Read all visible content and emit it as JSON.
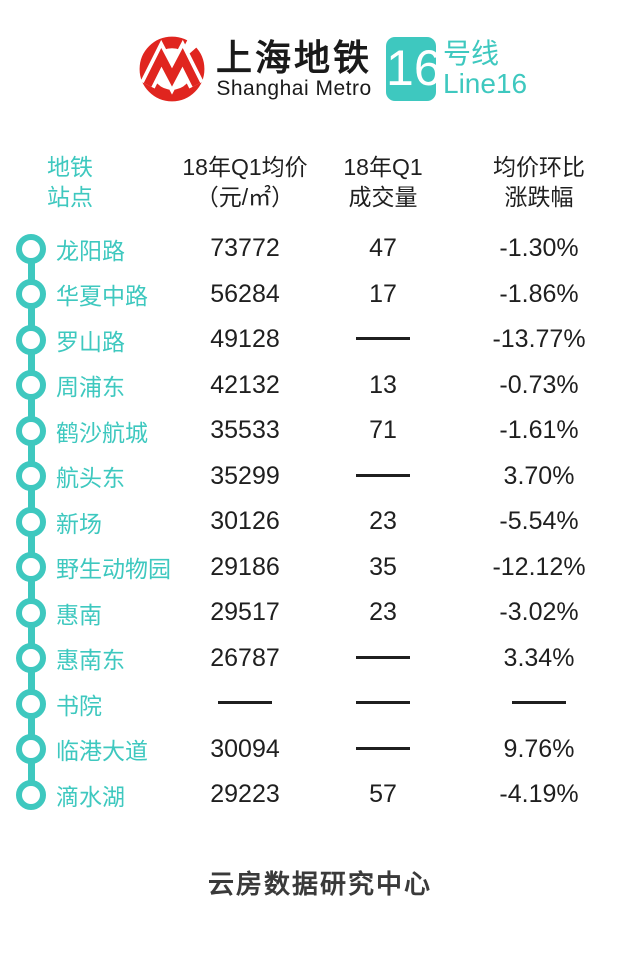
{
  "brand": {
    "logo": "shanghai-metro-logo",
    "title_zh": "上海地铁",
    "title_en": "Shanghai Metro",
    "line_number": "16",
    "line_label_zh": "号线",
    "line_label_en": "Line16"
  },
  "colors": {
    "teal": "#3EC8BF",
    "logo_red": "#E0251F",
    "text_dark": "#1F1F1F",
    "footer_gray": "#3A3A3A"
  },
  "table": {
    "headers": [
      {
        "line1": "地铁",
        "line2": "站点"
      },
      {
        "line1": "18年Q1均价",
        "line2": "（元/㎡）"
      },
      {
        "line1": "18年Q1",
        "line2": "成交量"
      },
      {
        "line1": "均价环比",
        "line2": "涨跌幅"
      }
    ],
    "no_data_symbol": "——",
    "rows": [
      {
        "station": "龙阳路",
        "price": "73772",
        "volume": "47",
        "change": "-1.30%"
      },
      {
        "station": "华夏中路",
        "price": "56284",
        "volume": "17",
        "change": "-1.86%"
      },
      {
        "station": "罗山路",
        "price": "49128",
        "volume": "——",
        "change": "-13.77%"
      },
      {
        "station": "周浦东",
        "price": "42132",
        "volume": "13",
        "change": "-0.73%"
      },
      {
        "station": "鹤沙航城",
        "price": "35533",
        "volume": "71",
        "change": "-1.61%"
      },
      {
        "station": "航头东",
        "price": "35299",
        "volume": "——",
        "change": "3.70%"
      },
      {
        "station": "新场",
        "price": "30126",
        "volume": "23",
        "change": "-5.54%"
      },
      {
        "station": "野生动物园",
        "price": "29186",
        "volume": "35",
        "change": "-12.12%"
      },
      {
        "station": "惠南",
        "price": "29517",
        "volume": "23",
        "change": "-3.02%"
      },
      {
        "station": "惠南东",
        "price": "26787",
        "volume": "——",
        "change": "3.34%"
      },
      {
        "station": "书院",
        "price": "——",
        "volume": "——",
        "change": "——"
      },
      {
        "station": "临港大道",
        "price": "30094",
        "volume": "——",
        "change": "9.76%"
      },
      {
        "station": "滴水湖",
        "price": "29223",
        "volume": "57",
        "change": "-4.19%"
      }
    ]
  },
  "footer": {
    "text": "云房数据研究中心"
  },
  "chart_data": {
    "type": "table",
    "title": "上海地铁 16号线 Line16",
    "columns": [
      "地铁站点",
      "18年Q1均价（元/㎡）",
      "18年Q1成交量",
      "均价环比涨跌幅"
    ],
    "rows": [
      [
        "龙阳路",
        73772,
        47,
        "-1.30%"
      ],
      [
        "华夏中路",
        56284,
        17,
        "-1.86%"
      ],
      [
        "罗山路",
        49128,
        null,
        "-13.77%"
      ],
      [
        "周浦东",
        42132,
        13,
        "-0.73%"
      ],
      [
        "鹤沙航城",
        35533,
        71,
        "-1.61%"
      ],
      [
        "航头东",
        35299,
        null,
        "3.70%"
      ],
      [
        "新场",
        30126,
        23,
        "-5.54%"
      ],
      [
        "野生动物园",
        29186,
        35,
        "-12.12%"
      ],
      [
        "惠南",
        29517,
        23,
        "-3.02%"
      ],
      [
        "惠南东",
        26787,
        null,
        "3.34%"
      ],
      [
        "书院",
        null,
        null,
        null
      ],
      [
        "临港大道",
        30094,
        null,
        "9.76%"
      ],
      [
        "滴水湖",
        29223,
        57,
        "-4.19%"
      ]
    ],
    "footer_source": "云房数据研究中心"
  }
}
